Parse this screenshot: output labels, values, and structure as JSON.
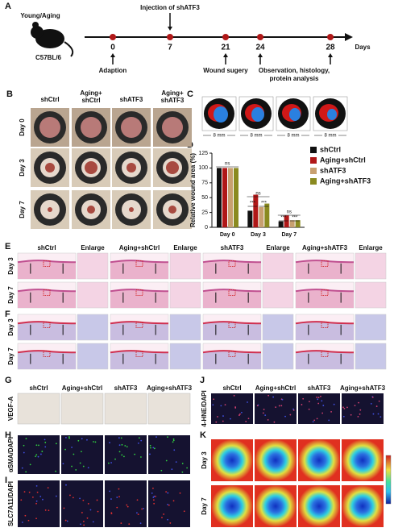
{
  "figure": {
    "panel_labels": [
      "A",
      "B",
      "C",
      "D",
      "E",
      "F",
      "G",
      "H",
      "I",
      "J",
      "K"
    ],
    "timeline": {
      "subject": "Young/Aging",
      "strain": "C57BL/6",
      "days": [
        0,
        7,
        21,
        24,
        28
      ],
      "unit": "Days",
      "injection": "Injection of shATF3",
      "adaption": "Adaption",
      "wound": "Wound sugery",
      "observation": [
        "Observation, histology,",
        "protein analysis"
      ]
    },
    "panel_b": {
      "columns": [
        [
          "shCtrl"
        ],
        [
          "Aging+",
          "shCtrl"
        ],
        [
          "shATF3"
        ],
        [
          "Aging+",
          "shATF3"
        ]
      ],
      "rows": [
        "Day 0",
        "Day 3",
        "Day 7"
      ]
    },
    "panel_c": {
      "scale_labels": [
        "8 mm",
        "8 mm",
        "8 mm",
        "8 mm"
      ]
    },
    "panel_e": {
      "headers": [
        "shCtrl",
        "Enlarge",
        "Aging+shCtrl",
        "Enlarge",
        "shATF3",
        "Enlarge",
        "Aging+shATF3",
        "Enlarge"
      ],
      "rows": [
        "Day 3",
        "Day 7"
      ]
    },
    "panel_f": {
      "rows": [
        "Day 3",
        "Day 7"
      ]
    },
    "panel_g": {
      "headers": [
        "shCtrl",
        "Aging+shCtrl",
        "shATF3",
        "Aging+shATF3"
      ],
      "stain": "VEGF-A"
    },
    "panel_h": {
      "stain": "αSMA/DAPI"
    },
    "panel_i": {
      "stain": "SLC7A11/DAPI"
    },
    "panel_j": {
      "headers": [
        "shCtrl",
        "Aging+shCtrl",
        "shATF3",
        "Aging+shATF3"
      ],
      "stain": "4-HNE/DAPI"
    },
    "panel_k": {
      "rows": [
        "Day 3",
        "Day 7"
      ]
    }
  },
  "chart_data": {
    "type": "bar",
    "y_label": "Relative wound area (%)",
    "categories": [
      "Day 0",
      "Day 3",
      "Day 7"
    ],
    "series": [
      {
        "name": "shCtrl",
        "color": "#111111",
        "values": [
          100,
          28,
          10
        ]
      },
      {
        "name": "Aging+shCtrl",
        "color": "#b01818",
        "values": [
          100,
          55,
          20
        ]
      },
      {
        "name": "shATF3",
        "color": "#c8a070",
        "values": [
          100,
          34,
          12
        ]
      },
      {
        "name": "Aging+shATF3",
        "color": "#8a8a20",
        "values": [
          100,
          40,
          12
        ]
      }
    ],
    "ylim": [
      0,
      125
    ],
    "yticks": [
      0,
      25,
      50,
      75,
      100,
      125
    ],
    "annotations": [
      "ns",
      "ns",
      "***",
      "***",
      "ns",
      "***",
      "***"
    ]
  }
}
